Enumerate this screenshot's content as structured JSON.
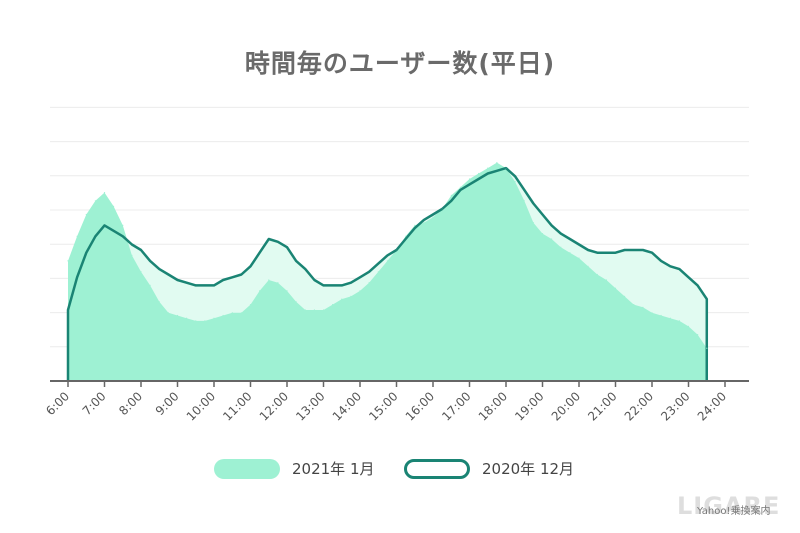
{
  "chart_data": {
    "type": "area",
    "title": "時間毎のユーザー数(平日)",
    "xlabel": "",
    "ylabel": "",
    "ylim": [
      0,
      100
    ],
    "grid": true,
    "legend_position": "bottom",
    "x_ticks": [
      "6:00",
      "7:00",
      "8:00",
      "9:00",
      "10:00",
      "11:00",
      "12:00",
      "13:00",
      "14:00",
      "15:00",
      "16:00",
      "17:00",
      "18:00",
      "19:00",
      "20:00",
      "21:00",
      "22:00",
      "23:00",
      "24:00"
    ],
    "x_hours": [
      6,
      6.25,
      6.5,
      6.75,
      7,
      7.25,
      7.5,
      7.75,
      8,
      8.25,
      8.5,
      8.75,
      9,
      9.25,
      9.5,
      9.75,
      10,
      10.25,
      10.5,
      10.75,
      11,
      11.25,
      11.5,
      11.75,
      12,
      12.25,
      12.5,
      12.75,
      13,
      13.25,
      13.5,
      13.75,
      14,
      14.25,
      14.5,
      14.75,
      15,
      15.25,
      15.5,
      15.75,
      16,
      16.25,
      16.5,
      16.75,
      17,
      17.25,
      17.5,
      17.75,
      18,
      18.25,
      18.5,
      18.75,
      19,
      19.25,
      19.5,
      19.75,
      20,
      20.25,
      20.5,
      20.75,
      21,
      21.25,
      21.5,
      21.75,
      22,
      22.25,
      22.5,
      22.75,
      23,
      23.25,
      23.5
    ],
    "series": [
      {
        "name": "2021年 1月",
        "style": "filled",
        "values": [
          44,
          53,
          61,
          66,
          69,
          64,
          57,
          46,
          40,
          35,
          29,
          25,
          24,
          23,
          22,
          22,
          23,
          24,
          25,
          25,
          28,
          33,
          37,
          36,
          33,
          29,
          26,
          26,
          26,
          28,
          30,
          31,
          33,
          36,
          40,
          44,
          48,
          53,
          57,
          58,
          60,
          63,
          68,
          71,
          74,
          76,
          78,
          80,
          78,
          73,
          66,
          58,
          54,
          52,
          49,
          47,
          45,
          42,
          39,
          37,
          34,
          31,
          28,
          27,
          25,
          24,
          23,
          22,
          20,
          17,
          12
        ]
      },
      {
        "name": "2020年 12月",
        "style": "outline",
        "values": [
          26,
          38,
          47,
          53,
          57,
          55,
          53,
          50,
          48,
          44,
          41,
          39,
          37,
          36,
          35,
          35,
          35,
          37,
          38,
          39,
          42,
          47,
          52,
          51,
          49,
          44,
          41,
          37,
          35,
          35,
          35,
          36,
          38,
          40,
          43,
          46,
          48,
          52,
          56,
          59,
          61,
          63,
          66,
          70,
          72,
          74,
          76,
          77,
          78,
          75,
          70,
          65,
          61,
          57,
          54,
          52,
          50,
          48,
          47,
          47,
          47,
          48,
          48,
          48,
          47,
          44,
          42,
          41,
          38,
          35,
          30
        ]
      }
    ]
  },
  "legend": {
    "items": [
      {
        "label": "2021年 1月",
        "fill": "#9ef1d3",
        "stroke": "#9ef1d3"
      },
      {
        "label": "2020年 12月",
        "fill": "#ffffff",
        "stroke": "#1a8474"
      }
    ]
  },
  "colors": {
    "fill_2021": "#9ef1d3",
    "line_2020": "#1a8474",
    "fill_2020": "#e1fbf1",
    "axis": "#666666",
    "grid": "#ececec"
  },
  "source_credit": "Yahoo!乗換案内",
  "watermark": "LIGARE"
}
